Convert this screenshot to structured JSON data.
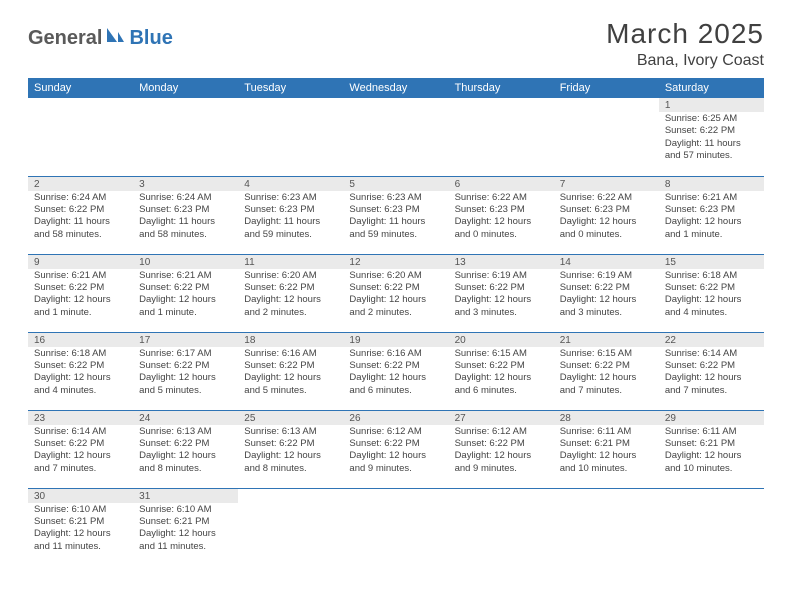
{
  "logo": {
    "general": "General",
    "blue": "Blue"
  },
  "title": "March 2025",
  "location": "Bana, Ivory Coast",
  "colors": {
    "header_bg": "#2f74b5",
    "header_text": "#ffffff",
    "row_divider": "#2f74b5",
    "daynum_bg": "#eaeaea"
  },
  "weekdays": [
    "Sunday",
    "Monday",
    "Tuesday",
    "Wednesday",
    "Thursday",
    "Friday",
    "Saturday"
  ],
  "weeks": [
    [
      null,
      null,
      null,
      null,
      null,
      null,
      {
        "n": "1",
        "sr": "Sunrise: 6:25 AM",
        "ss": "Sunset: 6:22 PM",
        "dl": "Daylight: 11 hours and 57 minutes."
      }
    ],
    [
      {
        "n": "2",
        "sr": "Sunrise: 6:24 AM",
        "ss": "Sunset: 6:22 PM",
        "dl": "Daylight: 11 hours and 58 minutes."
      },
      {
        "n": "3",
        "sr": "Sunrise: 6:24 AM",
        "ss": "Sunset: 6:23 PM",
        "dl": "Daylight: 11 hours and 58 minutes."
      },
      {
        "n": "4",
        "sr": "Sunrise: 6:23 AM",
        "ss": "Sunset: 6:23 PM",
        "dl": "Daylight: 11 hours and 59 minutes."
      },
      {
        "n": "5",
        "sr": "Sunrise: 6:23 AM",
        "ss": "Sunset: 6:23 PM",
        "dl": "Daylight: 11 hours and 59 minutes."
      },
      {
        "n": "6",
        "sr": "Sunrise: 6:22 AM",
        "ss": "Sunset: 6:23 PM",
        "dl": "Daylight: 12 hours and 0 minutes."
      },
      {
        "n": "7",
        "sr": "Sunrise: 6:22 AM",
        "ss": "Sunset: 6:23 PM",
        "dl": "Daylight: 12 hours and 0 minutes."
      },
      {
        "n": "8",
        "sr": "Sunrise: 6:21 AM",
        "ss": "Sunset: 6:23 PM",
        "dl": "Daylight: 12 hours and 1 minute."
      }
    ],
    [
      {
        "n": "9",
        "sr": "Sunrise: 6:21 AM",
        "ss": "Sunset: 6:22 PM",
        "dl": "Daylight: 12 hours and 1 minute."
      },
      {
        "n": "10",
        "sr": "Sunrise: 6:21 AM",
        "ss": "Sunset: 6:22 PM",
        "dl": "Daylight: 12 hours and 1 minute."
      },
      {
        "n": "11",
        "sr": "Sunrise: 6:20 AM",
        "ss": "Sunset: 6:22 PM",
        "dl": "Daylight: 12 hours and 2 minutes."
      },
      {
        "n": "12",
        "sr": "Sunrise: 6:20 AM",
        "ss": "Sunset: 6:22 PM",
        "dl": "Daylight: 12 hours and 2 minutes."
      },
      {
        "n": "13",
        "sr": "Sunrise: 6:19 AM",
        "ss": "Sunset: 6:22 PM",
        "dl": "Daylight: 12 hours and 3 minutes."
      },
      {
        "n": "14",
        "sr": "Sunrise: 6:19 AM",
        "ss": "Sunset: 6:22 PM",
        "dl": "Daylight: 12 hours and 3 minutes."
      },
      {
        "n": "15",
        "sr": "Sunrise: 6:18 AM",
        "ss": "Sunset: 6:22 PM",
        "dl": "Daylight: 12 hours and 4 minutes."
      }
    ],
    [
      {
        "n": "16",
        "sr": "Sunrise: 6:18 AM",
        "ss": "Sunset: 6:22 PM",
        "dl": "Daylight: 12 hours and 4 minutes."
      },
      {
        "n": "17",
        "sr": "Sunrise: 6:17 AM",
        "ss": "Sunset: 6:22 PM",
        "dl": "Daylight: 12 hours and 5 minutes."
      },
      {
        "n": "18",
        "sr": "Sunrise: 6:16 AM",
        "ss": "Sunset: 6:22 PM",
        "dl": "Daylight: 12 hours and 5 minutes."
      },
      {
        "n": "19",
        "sr": "Sunrise: 6:16 AM",
        "ss": "Sunset: 6:22 PM",
        "dl": "Daylight: 12 hours and 6 minutes."
      },
      {
        "n": "20",
        "sr": "Sunrise: 6:15 AM",
        "ss": "Sunset: 6:22 PM",
        "dl": "Daylight: 12 hours and 6 minutes."
      },
      {
        "n": "21",
        "sr": "Sunrise: 6:15 AM",
        "ss": "Sunset: 6:22 PM",
        "dl": "Daylight: 12 hours and 7 minutes."
      },
      {
        "n": "22",
        "sr": "Sunrise: 6:14 AM",
        "ss": "Sunset: 6:22 PM",
        "dl": "Daylight: 12 hours and 7 minutes."
      }
    ],
    [
      {
        "n": "23",
        "sr": "Sunrise: 6:14 AM",
        "ss": "Sunset: 6:22 PM",
        "dl": "Daylight: 12 hours and 7 minutes."
      },
      {
        "n": "24",
        "sr": "Sunrise: 6:13 AM",
        "ss": "Sunset: 6:22 PM",
        "dl": "Daylight: 12 hours and 8 minutes."
      },
      {
        "n": "25",
        "sr": "Sunrise: 6:13 AM",
        "ss": "Sunset: 6:22 PM",
        "dl": "Daylight: 12 hours and 8 minutes."
      },
      {
        "n": "26",
        "sr": "Sunrise: 6:12 AM",
        "ss": "Sunset: 6:22 PM",
        "dl": "Daylight: 12 hours and 9 minutes."
      },
      {
        "n": "27",
        "sr": "Sunrise: 6:12 AM",
        "ss": "Sunset: 6:22 PM",
        "dl": "Daylight: 12 hours and 9 minutes."
      },
      {
        "n": "28",
        "sr": "Sunrise: 6:11 AM",
        "ss": "Sunset: 6:21 PM",
        "dl": "Daylight: 12 hours and 10 minutes."
      },
      {
        "n": "29",
        "sr": "Sunrise: 6:11 AM",
        "ss": "Sunset: 6:21 PM",
        "dl": "Daylight: 12 hours and 10 minutes."
      }
    ],
    [
      {
        "n": "30",
        "sr": "Sunrise: 6:10 AM",
        "ss": "Sunset: 6:21 PM",
        "dl": "Daylight: 12 hours and 11 minutes."
      },
      {
        "n": "31",
        "sr": "Sunrise: 6:10 AM",
        "ss": "Sunset: 6:21 PM",
        "dl": "Daylight: 12 hours and 11 minutes."
      },
      null,
      null,
      null,
      null,
      null
    ]
  ]
}
